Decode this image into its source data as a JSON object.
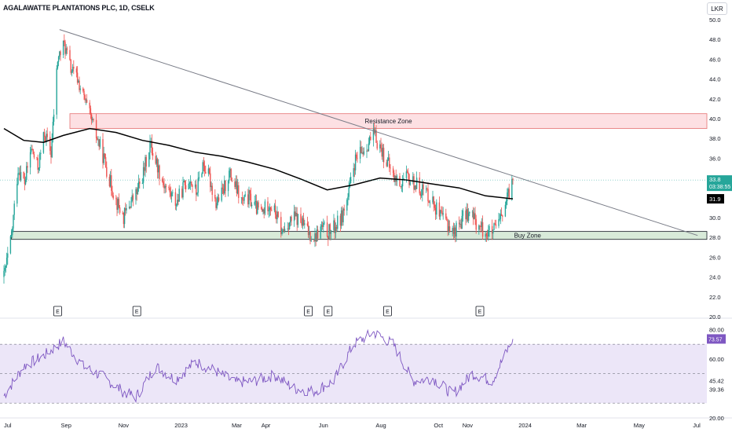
{
  "symbol_title": "AGALAWATTE PLANTATIONS PLC, 1D, CSELK",
  "currency_button": "LKR",
  "colors": {
    "up": "#26a69a",
    "down": "#ef5350",
    "ma": "#000000",
    "trendline": "#787b86",
    "resistance_fill": "#fde0e3",
    "buyzone_fill": "#d8ead9",
    "rsi_line": "#7e57c2",
    "rsi_band": "#ece6f8"
  },
  "annotations": {
    "resistance_label": "Resistance Zone",
    "buy_label": "Buy Zone",
    "earnings_marker": "E"
  },
  "price_labels": {
    "last_price": "33.8",
    "countdown": "03:38:55",
    "ma_value": "31.9"
  },
  "rsi_labels": {
    "value": "73.57"
  },
  "chart_data": [
    {
      "type": "candlestick",
      "title": "AGALAWATTE PLANTATIONS PLC, 1D, CSELK",
      "y_unit": "LKR",
      "ylim": [
        20,
        51
      ],
      "y_ticks": [
        "50.0",
        "48.0",
        "46.0",
        "44.0",
        "42.0",
        "40.0",
        "38.0",
        "36.0",
        "34.0",
        "32.0",
        "30.0",
        "28.0",
        "26.0",
        "24.0",
        "22.0",
        "20.0"
      ],
      "x_ticks": [
        "Jul",
        "Sep",
        "Nov",
        "2023",
        "Mar",
        "Apr",
        "Jun",
        "Aug",
        "Oct",
        "Nov",
        "2024",
        "Mar",
        "May",
        "Jul"
      ],
      "price_path": [
        [
          "2022-06-27",
          24.0
        ],
        [
          "2022-07-05",
          28.0
        ],
        [
          "2022-07-12",
          35.0
        ],
        [
          "2022-07-19",
          33.5
        ],
        [
          "2022-07-26",
          37.0
        ],
        [
          "2022-08-02",
          35.0
        ],
        [
          "2022-08-09",
          38.5
        ],
        [
          "2022-08-16",
          36.5
        ],
        [
          "2022-08-23",
          46.0
        ],
        [
          "2022-08-30",
          47.5
        ],
        [
          "2022-09-06",
          45.0
        ],
        [
          "2022-09-13",
          44.0
        ],
        [
          "2022-09-20",
          42.0
        ],
        [
          "2022-09-27",
          40.0
        ],
        [
          "2022-10-04",
          38.0
        ],
        [
          "2022-10-11",
          36.0
        ],
        [
          "2022-10-18",
          33.5
        ],
        [
          "2022-10-25",
          31.5
        ],
        [
          "2022-11-01",
          30.0
        ],
        [
          "2022-11-08",
          31.5
        ],
        [
          "2022-11-15",
          32.5
        ],
        [
          "2022-11-22",
          34.5
        ],
        [
          "2022-11-29",
          37.5
        ],
        [
          "2022-12-06",
          35.5
        ],
        [
          "2022-12-13",
          33.5
        ],
        [
          "2022-12-20",
          32.5
        ],
        [
          "2022-12-27",
          31.5
        ],
        [
          "2023-01-03",
          33.0
        ],
        [
          "2023-01-10",
          34.0
        ],
        [
          "2023-01-17",
          32.5
        ],
        [
          "2023-01-24",
          35.5
        ],
        [
          "2023-01-31",
          34.0
        ],
        [
          "2023-02-07",
          31.5
        ],
        [
          "2023-02-14",
          32.5
        ],
        [
          "2023-02-21",
          34.5
        ],
        [
          "2023-02-28",
          33.0
        ],
        [
          "2023-03-07",
          31.5
        ],
        [
          "2023-03-14",
          32.0
        ],
        [
          "2023-03-21",
          31.0
        ],
        [
          "2023-03-28",
          30.5
        ],
        [
          "2023-04-04",
          31.5
        ],
        [
          "2023-04-11",
          30.5
        ],
        [
          "2023-04-18",
          28.5
        ],
        [
          "2023-04-25",
          29.5
        ],
        [
          "2023-05-02",
          30.0
        ],
        [
          "2023-05-09",
          29.5
        ],
        [
          "2023-05-16",
          28.5
        ],
        [
          "2023-05-23",
          28.0
        ],
        [
          "2023-05-30",
          29.0
        ],
        [
          "2023-06-06",
          28.5
        ],
        [
          "2023-06-13",
          29.0
        ],
        [
          "2023-06-20",
          30.0
        ],
        [
          "2023-06-27",
          32.0
        ],
        [
          "2023-07-04",
          35.5
        ],
        [
          "2023-07-11",
          36.5
        ],
        [
          "2023-07-18",
          37.5
        ],
        [
          "2023-07-25",
          38.3
        ],
        [
          "2023-08-01",
          37.0
        ],
        [
          "2023-08-08",
          35.5
        ],
        [
          "2023-08-15",
          34.0
        ],
        [
          "2023-08-22",
          33.5
        ],
        [
          "2023-08-29",
          34.0
        ],
        [
          "2023-09-05",
          33.5
        ],
        [
          "2023-09-12",
          33.0
        ],
        [
          "2023-09-19",
          32.5
        ],
        [
          "2023-09-26",
          31.5
        ],
        [
          "2023-10-03",
          30.0
        ],
        [
          "2023-10-10",
          29.5
        ],
        [
          "2023-10-17",
          28.5
        ],
        [
          "2023-10-24",
          29.5
        ],
        [
          "2023-10-31",
          30.5
        ],
        [
          "2023-11-07",
          30.0
        ],
        [
          "2023-11-14",
          29.0
        ],
        [
          "2023-11-21",
          28.5
        ],
        [
          "2023-11-28",
          28.5
        ],
        [
          "2023-12-05",
          29.5
        ],
        [
          "2023-12-12",
          31.5
        ],
        [
          "2023-12-19",
          33.8
        ]
      ],
      "moving_average": {
        "value_label": "31.9",
        "points": [
          [
            "2022-06-27",
            39.0
          ],
          [
            "2022-07-18",
            37.8
          ],
          [
            "2022-08-08",
            37.6
          ],
          [
            "2022-08-29",
            38.3
          ],
          [
            "2022-09-26",
            39.0
          ],
          [
            "2022-10-24",
            38.6
          ],
          [
            "2022-11-21",
            37.8
          ],
          [
            "2022-12-19",
            37.3
          ],
          [
            "2023-01-16",
            36.6
          ],
          [
            "2023-02-13",
            36.2
          ],
          [
            "2023-03-13",
            35.6
          ],
          [
            "2023-04-10",
            34.9
          ],
          [
            "2023-05-08",
            33.9
          ],
          [
            "2023-06-05",
            32.8
          ],
          [
            "2023-07-03",
            33.3
          ],
          [
            "2023-07-31",
            34.0
          ],
          [
            "2023-08-28",
            33.8
          ],
          [
            "2023-09-25",
            33.4
          ],
          [
            "2023-10-23",
            33.0
          ],
          [
            "2023-11-20",
            32.2
          ],
          [
            "2023-12-19",
            31.9
          ]
        ]
      },
      "trendline": [
        [
          "2022-08-25",
          49.0
        ],
        [
          "2024-07-02",
          28.2
        ]
      ],
      "resistance_zone": {
        "label": "Resistance Zone",
        "from": 39.0,
        "to": 40.5,
        "start": "2022-09-05"
      },
      "buy_zone": {
        "label": "Buy Zone",
        "from": 27.8,
        "to": 28.6,
        "start": "2022-07-05"
      },
      "earnings_dates": [
        "2022-08-23",
        "2022-11-15",
        "2023-05-16",
        "2023-06-06",
        "2023-08-08",
        "2023-11-14"
      ],
      "last_price": 33.8,
      "ma_last": 31.9
    },
    {
      "type": "line",
      "title": "RSI",
      "ylim": [
        20,
        85
      ],
      "y_ticks": [
        "80.00",
        "60.00",
        "45.42",
        "39.36",
        "20.00"
      ],
      "band": [
        30,
        70
      ],
      "mid_line": 50,
      "last_value": 73.57,
      "series": [
        {
          "points": [
            [
              "2022-06-27",
              35
            ],
            [
              "2022-07-18",
              55
            ],
            [
              "2022-08-08",
              62
            ],
            [
              "2022-08-29",
              72
            ],
            [
              "2022-09-19",
              55
            ],
            [
              "2022-10-10",
              48
            ],
            [
              "2022-10-31",
              38
            ],
            [
              "2022-11-14",
              34
            ],
            [
              "2022-12-05",
              55
            ],
            [
              "2022-12-26",
              46
            ],
            [
              "2023-01-16",
              58
            ],
            [
              "2023-02-06",
              52
            ],
            [
              "2023-02-27",
              44
            ],
            [
              "2023-03-20",
              45
            ],
            [
              "2023-04-10",
              49
            ],
            [
              "2023-05-01",
              40
            ],
            [
              "2023-05-22",
              38
            ],
            [
              "2023-06-12",
              45
            ],
            [
              "2023-07-03",
              70
            ],
            [
              "2023-07-24",
              78
            ],
            [
              "2023-08-14",
              70
            ],
            [
              "2023-09-04",
              45
            ],
            [
              "2023-09-25",
              47
            ],
            [
              "2023-10-16",
              36
            ],
            [
              "2023-11-06",
              50
            ],
            [
              "2023-11-27",
              45
            ],
            [
              "2023-12-19",
              73.57
            ]
          ]
        }
      ]
    }
  ]
}
